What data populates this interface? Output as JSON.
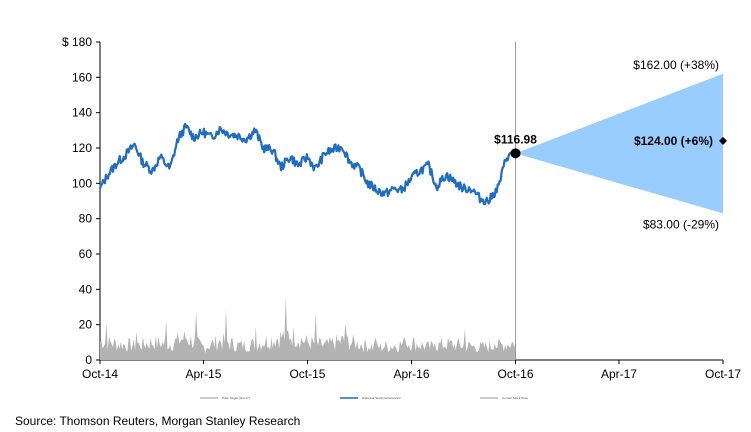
{
  "source": "Source: Thomson Reuters, Morgan Stanley Research",
  "chart_data": {
    "type": "line",
    "title": "",
    "ylabel": "",
    "xlabel": "",
    "ylim": [
      0,
      180
    ],
    "yticks": [
      "$ 180",
      "160",
      "140",
      "120",
      "100",
      "80",
      "60",
      "40",
      "20",
      "0"
    ],
    "ytick_values": [
      180,
      160,
      140,
      120,
      100,
      80,
      60,
      40,
      20,
      0
    ],
    "xticks": [
      "Oct-14",
      "Apr-15",
      "Oct-15",
      "Apr-16",
      "Oct-16",
      "Apr-17",
      "Oct-17"
    ],
    "xlim": [
      "2014-10",
      "2017-10"
    ],
    "grid": false,
    "legend_position": "bottom",
    "legend": [
      "Price Target (Oct-17)",
      "Historical Stock Performance",
      "Current Stock Price"
    ],
    "colors": {
      "price": "#1f6cc2",
      "volume": "#b3b3b3",
      "cone": "#99ccff",
      "divider": "#999999"
    },
    "price_series": {
      "name": "Historical Stock Performance",
      "x": [
        "2014-10-01",
        "2014-10-15",
        "2014-11-01",
        "2014-11-15",
        "2014-12-01",
        "2014-12-15",
        "2015-01-01",
        "2015-01-15",
        "2015-02-01",
        "2015-02-15",
        "2015-03-01",
        "2015-03-15",
        "2015-04-01",
        "2015-04-15",
        "2015-05-01",
        "2015-05-15",
        "2015-06-01",
        "2015-06-15",
        "2015-07-01",
        "2015-07-15",
        "2015-08-01",
        "2015-08-15",
        "2015-09-01",
        "2015-09-15",
        "2015-10-01",
        "2015-10-15",
        "2015-11-01",
        "2015-11-15",
        "2015-12-01",
        "2015-12-15",
        "2016-01-01",
        "2016-01-15",
        "2016-02-01",
        "2016-02-15",
        "2016-03-01",
        "2016-03-15",
        "2016-04-01",
        "2016-04-15",
        "2016-05-01",
        "2016-05-15",
        "2016-06-01",
        "2016-06-15",
        "2016-07-01",
        "2016-07-15",
        "2016-08-01",
        "2016-08-15",
        "2016-09-01",
        "2016-09-15",
        "2016-10-01"
      ],
      "values": [
        97,
        105,
        112,
        116,
        122,
        112,
        107,
        115,
        108,
        125,
        132,
        126,
        129,
        126,
        131,
        128,
        127,
        125,
        130,
        120,
        119,
        109,
        115,
        110,
        115,
        108,
        117,
        119,
        121,
        112,
        108,
        100,
        96,
        94,
        97,
        96,
        103,
        107,
        110,
        98,
        105,
        101,
        97,
        97,
        91,
        90,
        98,
        115,
        116.98
      ]
    },
    "volume_series": {
      "name": "Volume",
      "x": [
        "2014-10-01",
        "2014-11-01",
        "2014-12-01",
        "2015-01-01",
        "2015-02-01",
        "2015-03-01",
        "2015-04-01",
        "2015-05-01",
        "2015-06-01",
        "2015-07-01",
        "2015-08-01",
        "2015-09-01",
        "2015-10-01",
        "2015-11-01",
        "2015-12-01",
        "2016-01-01",
        "2016-02-01",
        "2016-03-01",
        "2016-04-01",
        "2016-05-01",
        "2016-06-01",
        "2016-07-01",
        "2016-08-01",
        "2016-09-01",
        "2016-10-01"
      ],
      "values": [
        12,
        10,
        9,
        11,
        10,
        14,
        8,
        12,
        9,
        10,
        13,
        16,
        11,
        9,
        12,
        10,
        8,
        9,
        11,
        8,
        10,
        9,
        8,
        9,
        11
      ]
    },
    "current_price": {
      "date": "2016-10-01",
      "value": 116.98,
      "label": "$116.98"
    },
    "forecast": {
      "date": "2017-10-01",
      "high": {
        "value": 162.0,
        "label": "$162.00 (+38%)"
      },
      "target": {
        "value": 124.0,
        "label": "$124.00 (+6%)"
      },
      "low": {
        "value": 83.0,
        "label": "$83.00 (-29%)"
      }
    }
  }
}
